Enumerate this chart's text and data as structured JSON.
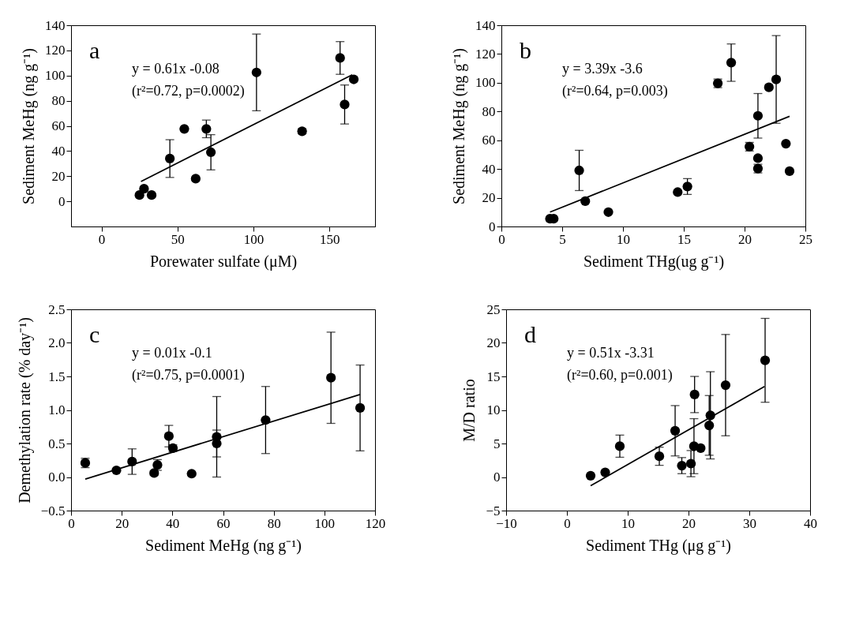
{
  "chart_data": [
    {
      "type": "scatter",
      "xlabel": "Porewater sulfate (μM)",
      "ylabel": "Sediment MeHg (ng g⁻¹)",
      "annotations": [
        "a",
        "y = 0.61x -0.08",
        "(r²=0.72, p=0.0002)"
      ],
      "xlim": [
        -20,
        180
      ],
      "xticks": [
        0,
        50,
        100,
        150
      ],
      "ylim": [
        -20,
        140
      ],
      "yticks": [
        0,
        20,
        40,
        60,
        80,
        100,
        120,
        140
      ],
      "grid": false,
      "series": [
        {
          "marker": "circle",
          "color": "#000000",
          "x": [
            25,
            28,
            33,
            45,
            54.5,
            62,
            69,
            72,
            102,
            132,
            157,
            160,
            166
          ],
          "values": [
            5,
            10,
            5,
            34,
            57.6,
            18,
            57.6,
            39,
            102.5,
            55.7,
            114,
            77,
            97
          ],
          "errors": [
            null,
            null,
            null,
            15,
            null,
            null,
            7,
            14,
            30.5,
            2,
            13,
            15.5,
            null
          ]
        },
        {
          "type": "line",
          "color": "#000000",
          "line_style": "solid",
          "x": [
            26,
            165
          ],
          "values": [
            15.8,
            100.6
          ]
        }
      ]
    },
    {
      "type": "scatter",
      "xlabel": "Sediment THg(ug g⁻¹)",
      "ylabel": "Sediment MeHg (ng g⁻¹)",
      "annotations": [
        "b",
        "y = 3.39x -3.6",
        "(r²=0.64, p=0.003)"
      ],
      "xlim": [
        0,
        25
      ],
      "xticks": [
        0,
        5,
        10,
        15,
        20,
        25
      ],
      "ylim": [
        0,
        140
      ],
      "yticks": [
        0,
        20,
        40,
        60,
        80,
        100,
        120,
        140
      ],
      "grid": false,
      "series": [
        {
          "marker": "circle",
          "color": "#000000",
          "x": [
            4.0,
            4.3,
            6.4,
            6.9,
            8.8,
            14.5,
            15.3,
            17.8,
            18.9,
            20.4,
            21.1,
            21.1,
            21.1,
            22.0,
            22.6,
            23.4,
            23.7
          ],
          "values": [
            5.4,
            5.4,
            39,
            17.6,
            10,
            23.9,
            27.8,
            99.6,
            114,
            55.5,
            77,
            47.5,
            40.3,
            96.8,
            102.3,
            57.6,
            38.5
          ],
          "errors": [
            null,
            null,
            14,
            null,
            null,
            null,
            5.5,
            3,
            13,
            3,
            15.5,
            null,
            3,
            null,
            30.5,
            null,
            null
          ]
        },
        {
          "type": "line",
          "color": "#000000",
          "line_style": "solid",
          "x": [
            4.0,
            23.7
          ],
          "values": [
            10,
            76.7
          ]
        }
      ]
    },
    {
      "type": "scatter",
      "xlabel": "Sediment MeHg (ng g⁻¹)",
      "ylabel": "Demethylation rate (% day⁻¹)",
      "annotations": [
        "c",
        "y = 0.01x -0.1",
        "(r²=0.75, p=0.0001)"
      ],
      "xlim": [
        0,
        120
      ],
      "xticks": [
        0,
        20,
        40,
        60,
        80,
        100,
        120
      ],
      "ylim": [
        -0.5,
        2.5
      ],
      "yticks": [
        -0.5,
        {
          "value": 0,
          "label": "0.0"
        },
        0.5,
        {
          "value": 1,
          "label": "1.0"
        },
        1.5,
        {
          "value": 2,
          "label": "2.0"
        },
        2.5
      ],
      "grid": false,
      "series": [
        {
          "marker": "circle",
          "color": "#000000",
          "x": [
            5.6,
            17.9,
            24.1,
            32.8,
            34.1,
            38.6,
            40.2,
            47.6,
            57.5,
            57.5,
            76.8,
            102.6,
            114.1
          ],
          "values": [
            0.21,
            0.1,
            0.23,
            0.06,
            0.18,
            0.61,
            0.43,
            0.05,
            0.6,
            0.5,
            0.85,
            1.48,
            1.03
          ],
          "errors": [
            0.07,
            null,
            0.19,
            0.03,
            0.08,
            0.16,
            0.05,
            0.02,
            0.6,
            0.2,
            0.5,
            0.68,
            0.64
          ]
        },
        {
          "type": "line",
          "color": "#000000",
          "line_style": "solid",
          "x": [
            5.6,
            114.1
          ],
          "values": [
            -0.03,
            1.23
          ]
        }
      ]
    },
    {
      "type": "scatter",
      "xlabel": "Sediment THg (μg g⁻¹)",
      "ylabel": "M/D ratio",
      "annotations": [
        "d",
        "y = 0.51x -3.31",
        "(r²=0.60, p=0.001)"
      ],
      "xlim": [
        -10,
        40
      ],
      "xticks": [
        -10,
        0,
        10,
        20,
        30,
        40
      ],
      "ylim": [
        -5,
        25
      ],
      "yticks": [
        -5,
        0,
        5,
        10,
        15,
        20,
        25
      ],
      "grid": false,
      "series": [
        {
          "marker": "circle",
          "color": "#000000",
          "x": [
            3.9,
            6.3,
            8.7,
            15.2,
            17.8,
            18.9,
            20.4,
            20.9,
            21.0,
            22.0,
            23.4,
            23.6,
            26.1,
            32.6
          ],
          "values": [
            0.2,
            0.7,
            4.6,
            3.1,
            6.9,
            1.7,
            2.0,
            4.6,
            12.3,
            4.3,
            7.7,
            9.2,
            13.7,
            17.4
          ],
          "errors": [
            null,
            null,
            1.65,
            1.35,
            3.75,
            1.2,
            1.95,
            4.1,
            2.7,
            null,
            4.45,
            6.5,
            7.55,
            6.25
          ]
        },
        {
          "type": "line",
          "color": "#000000",
          "line_style": "solid",
          "x": [
            3.9,
            32.5
          ],
          "values": [
            -1.3,
            13.5
          ]
        }
      ]
    }
  ]
}
